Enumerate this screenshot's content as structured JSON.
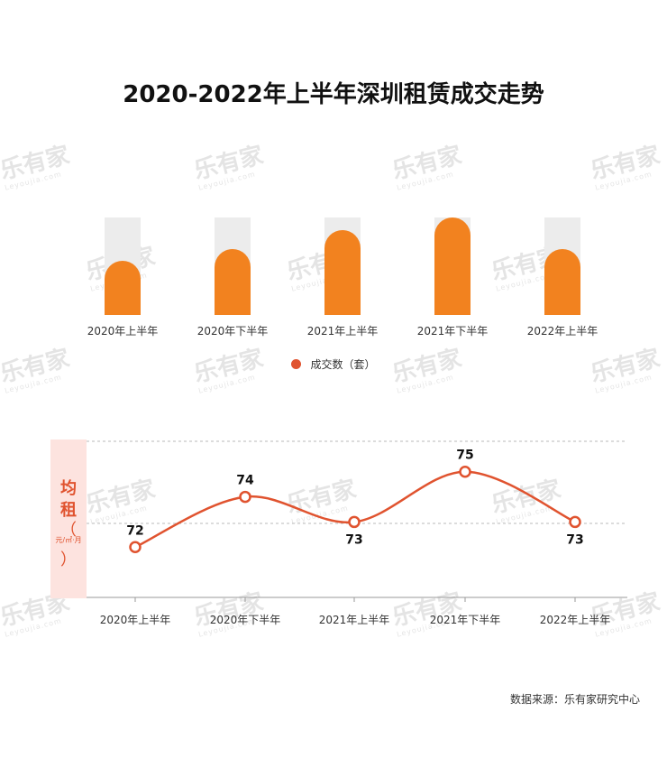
{
  "title": "2020-2022年上半年深圳租赁成交走势",
  "watermark": {
    "text": "乐有家",
    "sub": "Leyoujia.com"
  },
  "chart_data": [
    {
      "type": "bar",
      "categories": [
        "2020年上半年",
        "2020年下半年",
        "2021年上半年",
        "2021年下半年",
        "2022年上半年"
      ],
      "values": [
        0.56,
        0.68,
        0.87,
        1.0,
        0.68
      ],
      "value_unit": "relative to maximum (no axis printed)",
      "legend": [
        "成交数（套）"
      ],
      "legend_position": "bottom-center",
      "colors": {
        "bar": "#f2821f",
        "track": "#ececec"
      }
    },
    {
      "type": "line",
      "categories": [
        "2020年上半年",
        "2020年下半年",
        "2021年上半年",
        "2021年下半年",
        "2022年上半年"
      ],
      "values": [
        72,
        74,
        73,
        75,
        73
      ],
      "labels": [
        "72",
        "74",
        "73",
        "75",
        "73"
      ],
      "ylabel_main": [
        "均",
        "租"
      ],
      "ylabel_paren": [
        "（",
        "）"
      ],
      "ylabel_unit": "元/㎡·月",
      "ylim": [
        70,
        77
      ],
      "grid": "dashed",
      "colors": {
        "line": "#e0532f",
        "ylabel_bg": "#fde3df"
      }
    }
  ],
  "source": "数据来源：乐有家研究中心"
}
